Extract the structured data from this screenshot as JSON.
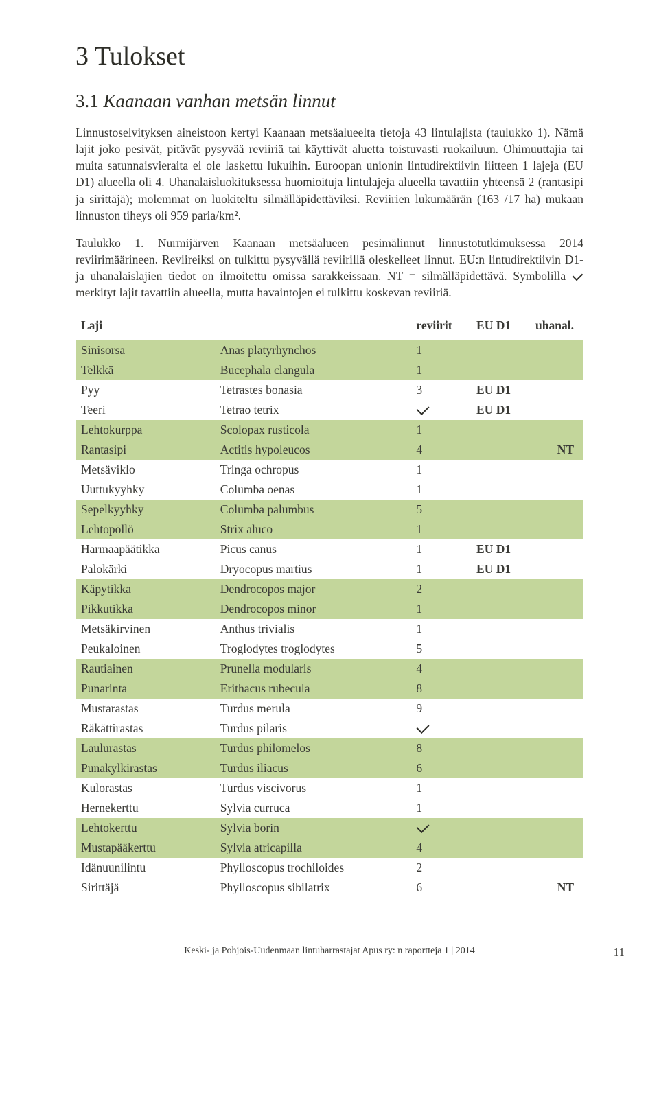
{
  "heading": "3 Tulokset",
  "subheading_num": "3.1 ",
  "subheading_rest": "Kaanaan vanhan metsän linnut",
  "para1": "Linnustoselvityksen aineistoon kertyi Kaanaan metsäalueelta tietoja 43 lintulajista (taulukko 1). Nämä lajit joko pesivät, pitävät pysyvää reviiriä tai käyttivät aluetta toistuvasti ruokailuun. Ohimuuttajia tai muita satunnaisvieraita ei ole laskettu lukuihin. Euroopan unionin lintudirektiivin liitteen 1 lajeja (EU D1) alueella oli 4. Uhanalaisluokituksessa huomioituja lintulajeja alueella tavattiin yhteensä 2 (rantasipi ja sirittäjä); molemmat on luokiteltu silmälläpidettäviksi. Reviirien lukumäärän (163 /17 ha) mukaan linnuston tiheys oli 959 paria/km².",
  "caption_pre": "Taulukko 1. Nurmijärven Kaanaan metsäalueen pesimälinnut linnustotutkimuksessa 2014 reviirimäärineen. Reviireiksi on tulkittu pysyvällä reviirillä oleskelleet linnut. EU:n lintudirektiivin D1- ja uhanalaislajien tiedot on ilmoitettu omissa sarakkeissaan. NT = silmälläpidettävä. Symbolilla ",
  "caption_post": " merkityt lajit tavattiin alueella, mutta havaintojen ei tulkittu koskevan reviiriä.",
  "table": {
    "headers": [
      "Laji",
      "",
      "reviirit",
      "EU D1",
      "uhanal."
    ],
    "rows": [
      {
        "fi": "Sinisorsa",
        "la": "Anas platyrhynchos",
        "rev": "1",
        "d1": "",
        "uh": "",
        "shaded": true
      },
      {
        "fi": "Telkkä",
        "la": "Bucephala clangula",
        "rev": "1",
        "d1": "",
        "uh": "",
        "shaded": true
      },
      {
        "fi": "Pyy",
        "la": "Tetrastes bonasia",
        "rev": "3",
        "d1": "EU D1",
        "uh": "",
        "shaded": false
      },
      {
        "fi": "Teeri",
        "la": "Tetrao tetrix",
        "rev": "✓",
        "d1": "EU D1",
        "uh": "",
        "shaded": false
      },
      {
        "fi": "Lehtokurppa",
        "la": "Scolopax rusticola",
        "rev": "1",
        "d1": "",
        "uh": "",
        "shaded": true
      },
      {
        "fi": "Rantasipi",
        "la": "Actitis hypoleucos",
        "rev": "4",
        "d1": "",
        "uh": "NT",
        "shaded": true
      },
      {
        "fi": "Metsäviklo",
        "la": "Tringa ochropus",
        "rev": "1",
        "d1": "",
        "uh": "",
        "shaded": false
      },
      {
        "fi": "Uuttukyyhky",
        "la": "Columba oenas",
        "rev": "1",
        "d1": "",
        "uh": "",
        "shaded": false
      },
      {
        "fi": "Sepelkyyhky",
        "la": "Columba palumbus",
        "rev": "5",
        "d1": "",
        "uh": "",
        "shaded": true
      },
      {
        "fi": "Lehtopöllö",
        "la": "Strix aluco",
        "rev": "1",
        "d1": "",
        "uh": "",
        "shaded": true
      },
      {
        "fi": "Harmaapäätikka",
        "la": "Picus canus",
        "rev": "1",
        "d1": "EU D1",
        "uh": "",
        "shaded": false
      },
      {
        "fi": "Palokärki",
        "la": "Dryocopus martius",
        "rev": "1",
        "d1": "EU D1",
        "uh": "",
        "shaded": false
      },
      {
        "fi": "Käpytikka",
        "la": "Dendrocopos major",
        "rev": "2",
        "d1": "",
        "uh": "",
        "shaded": true
      },
      {
        "fi": "Pikkutikka",
        "la": "Dendrocopos minor",
        "rev": "1",
        "d1": "",
        "uh": "",
        "shaded": true
      },
      {
        "fi": "Metsäkirvinen",
        "la": "Anthus trivialis",
        "rev": "1",
        "d1": "",
        "uh": "",
        "shaded": false
      },
      {
        "fi": "Peukaloinen",
        "la": "Troglodytes troglodytes",
        "rev": "5",
        "d1": "",
        "uh": "",
        "shaded": false
      },
      {
        "fi": "Rautiainen",
        "la": "Prunella modularis",
        "rev": "4",
        "d1": "",
        "uh": "",
        "shaded": true
      },
      {
        "fi": "Punarinta",
        "la": "Erithacus rubecula",
        "rev": "8",
        "d1": "",
        "uh": "",
        "shaded": true
      },
      {
        "fi": "Mustarastas",
        "la": "Turdus merula",
        "rev": "9",
        "d1": "",
        "uh": "",
        "shaded": false
      },
      {
        "fi": "Räkättirastas",
        "la": "Turdus pilaris",
        "rev": "✓",
        "d1": "",
        "uh": "",
        "shaded": false
      },
      {
        "fi": "Laulurastas",
        "la": "Turdus philomelos",
        "rev": "8",
        "d1": "",
        "uh": "",
        "shaded": true
      },
      {
        "fi": "Punakylkirastas",
        "la": "Turdus iliacus",
        "rev": "6",
        "d1": "",
        "uh": "",
        "shaded": true
      },
      {
        "fi": "Kulorastas",
        "la": "Turdus viscivorus",
        "rev": "1",
        "d1": "",
        "uh": "",
        "shaded": false
      },
      {
        "fi": "Hernekerttu",
        "la": "Sylvia curruca",
        "rev": "1",
        "d1": "",
        "uh": "",
        "shaded": false
      },
      {
        "fi": "Lehtokerttu",
        "la": "Sylvia borin",
        "rev": "✓",
        "d1": "",
        "uh": "",
        "shaded": true
      },
      {
        "fi": "Mustapääkerttu",
        "la": "Sylvia atricapilla",
        "rev": "4",
        "d1": "",
        "uh": "",
        "shaded": true
      },
      {
        "fi": "Idänuunilintu",
        "la": "Phylloscopus trochiloides",
        "rev": "2",
        "d1": "",
        "uh": "",
        "shaded": false
      },
      {
        "fi": "Sirittäjä",
        "la": "Phylloscopus sibilatrix",
        "rev": "6",
        "d1": "",
        "uh": "NT",
        "shaded": false
      }
    ]
  },
  "footer_text": "Keski- ja Pohjois-Uudenmaan lintuharrastajat Apus ry: n raportteja  1 | 2014",
  "page_num": "11",
  "colors": {
    "shaded_row": "#c3d69b",
    "text": "#3a3a36",
    "bg": "#ffffff"
  }
}
